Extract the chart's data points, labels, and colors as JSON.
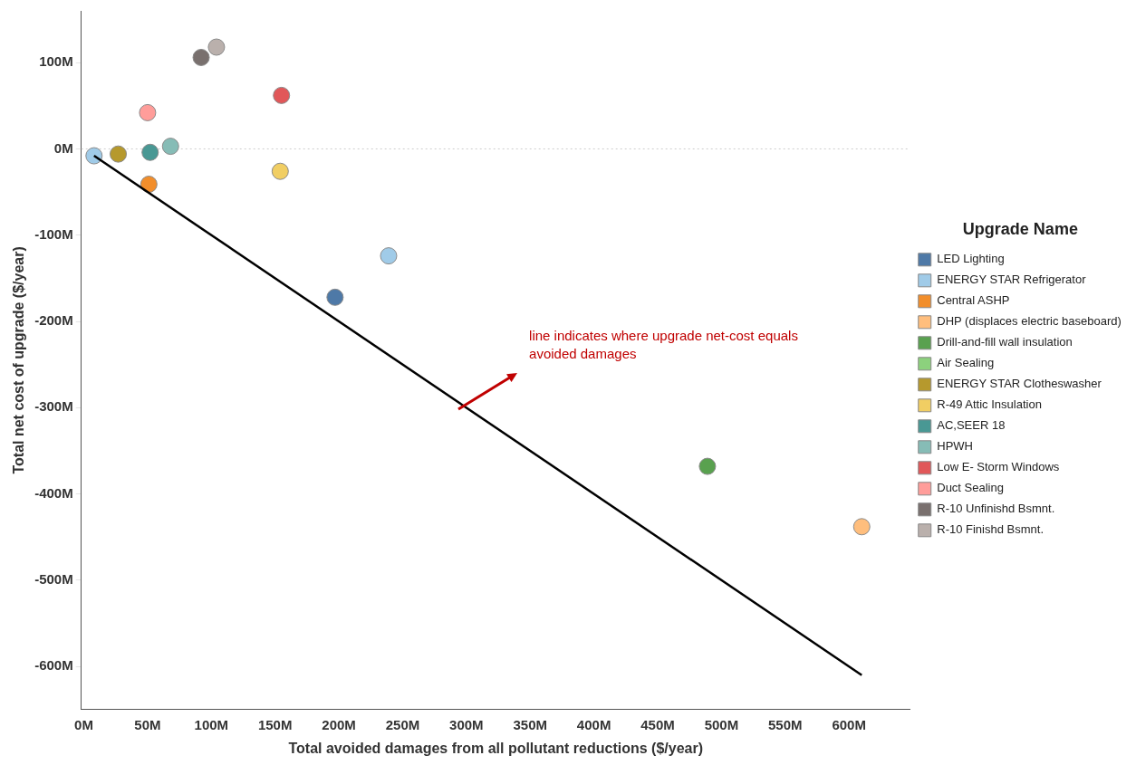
{
  "chart_data": {
    "type": "scatter",
    "xlabel": "Total avoided damages from all pollutant reductions ($/year)",
    "ylabel": "Total net cost of upgrade ($/year)",
    "legend_title": "Upgrade Name",
    "legend": "right",
    "marker": "circle",
    "xlim": [
      -2,
      648
    ],
    "ylim": [
      -650,
      160
    ],
    "xticks": [
      {
        "value": 0,
        "label": "0M"
      },
      {
        "value": 50,
        "label": "50M"
      },
      {
        "value": 100,
        "label": "100M"
      },
      {
        "value": 150,
        "label": "150M"
      },
      {
        "value": 200,
        "label": "200M"
      },
      {
        "value": 250,
        "label": "250M"
      },
      {
        "value": 300,
        "label": "300M"
      },
      {
        "value": 350,
        "label": "350M"
      },
      {
        "value": 400,
        "label": "400M"
      },
      {
        "value": 450,
        "label": "450M"
      },
      {
        "value": 500,
        "label": "500M"
      },
      {
        "value": 550,
        "label": "550M"
      },
      {
        "value": 600,
        "label": "600M"
      }
    ],
    "yticks": [
      {
        "value": 100,
        "label": "100M"
      },
      {
        "value": 0,
        "label": "0M"
      },
      {
        "value": -100,
        "label": "-100M"
      },
      {
        "value": -200,
        "label": "-200M"
      },
      {
        "value": -300,
        "label": "-300M"
      },
      {
        "value": -400,
        "label": "-400M"
      },
      {
        "value": -500,
        "label": "-500M"
      },
      {
        "value": -600,
        "label": "-600M"
      }
    ],
    "ref_lines": [
      {
        "axis": "y",
        "value": 0,
        "color": "#cccccc",
        "line_style": "dotted"
      }
    ],
    "annotations": [
      "line indicates where upgrade net-cost equals avoided damages"
    ],
    "series": [
      {
        "name": "LED Lighting",
        "color": "#4e79a7",
        "x": [
          197
        ],
        "values": [
          -172
        ]
      },
      {
        "name": "ENERGY STAR Refrigerator",
        "color": "#a0cbe8",
        "x": [
          8,
          239
        ],
        "values": [
          -8,
          -124
        ]
      },
      {
        "name": "Central ASHP",
        "color": "#f28e2b",
        "x": [
          51
        ],
        "values": [
          -41
        ]
      },
      {
        "name": "DHP (displaces electric baseboard)",
        "color": "#ffbe7d",
        "x": [
          610
        ],
        "values": [
          -438
        ]
      },
      {
        "name": "Drill-and-fill wall insulation",
        "color": "#59a14f",
        "x": [
          489
        ],
        "values": [
          -368
        ]
      },
      {
        "name": "Air Sealing",
        "color": "#8cd17d"
      },
      {
        "name": "ENERGY STAR Clotheswasher",
        "color": "#b6992d",
        "x": [
          27
        ],
        "values": [
          -6
        ]
      },
      {
        "name": "R-49 Attic Insulation",
        "color": "#f1ce63",
        "x": [
          154
        ],
        "values": [
          -26
        ]
      },
      {
        "name": "AC,SEER 18",
        "color": "#499894",
        "x": [
          52
        ],
        "values": [
          -4
        ]
      },
      {
        "name": "HPWH",
        "color": "#86bcb6",
        "x": [
          68
        ],
        "values": [
          3
        ]
      },
      {
        "name": "Low E- Storm Windows",
        "color": "#e15759",
        "x": [
          155
        ],
        "values": [
          62
        ]
      },
      {
        "name": "Duct Sealing",
        "color": "#ff9d9a",
        "x": [
          50
        ],
        "values": [
          42
        ]
      },
      {
        "name": "R-10 Unfinishd Bsmnt.",
        "color": "#79706e",
        "x": [
          92
        ],
        "values": [
          106
        ]
      },
      {
        "name": "R-10 Finishd Bsmnt.",
        "color": "#bab0ac",
        "x": [
          104
        ],
        "values": [
          118
        ]
      },
      {
        "type": "line",
        "color": "#000000",
        "marker": "none",
        "x": [
          8,
          610
        ],
        "values": [
          -8,
          -610
        ]
      }
    ]
  }
}
